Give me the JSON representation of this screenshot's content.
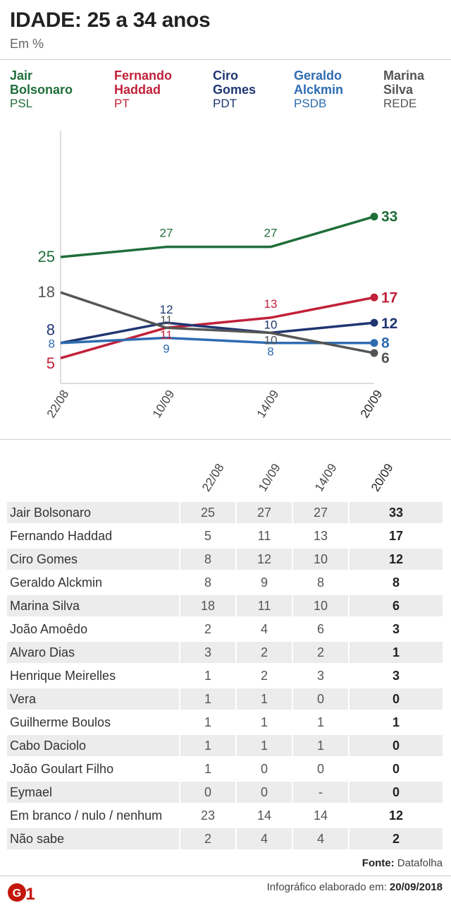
{
  "header": {
    "title": "IDADE: 25 a 34 anos",
    "subtitle": "Em %"
  },
  "legend": [
    {
      "name": "Jair\nBolsonaro",
      "party": "PSL",
      "color": "#1f6e3a"
    },
    {
      "name": "Fernando\nHaddad",
      "party": "PT",
      "color": "#c1213a"
    },
    {
      "name": "Ciro\nGomes",
      "party": "PDT",
      "color": "#1f3671"
    },
    {
      "name": "Geraldo\nAlckmin",
      "party": "PSDB",
      "color": "#2e6cb0"
    },
    {
      "name": "Marina\nSilva",
      "party": "REDE",
      "color": "#555555"
    }
  ],
  "chart_data": {
    "type": "line",
    "categories": [
      "22/08",
      "10/09",
      "14/09",
      "20/09"
    ],
    "ylim": [
      0,
      50
    ],
    "series": [
      {
        "name": "Jair Bolsonaro",
        "values": [
          25,
          27,
          27,
          33
        ],
        "color": "#1f6e3a"
      },
      {
        "name": "Fernando Haddad",
        "values": [
          5,
          11,
          13,
          17
        ],
        "color": "#c1213a"
      },
      {
        "name": "Ciro Gomes",
        "values": [
          8,
          12,
          10,
          12
        ],
        "color": "#1f3671"
      },
      {
        "name": "Geraldo Alckmin",
        "values": [
          8,
          9,
          8,
          8
        ],
        "color": "#2e6cb0"
      },
      {
        "name": "Marina Silva",
        "values": [
          18,
          11,
          10,
          6
        ],
        "color": "#555555"
      }
    ]
  },
  "table": {
    "columns": [
      "22/08",
      "10/09",
      "14/09",
      "20/09"
    ],
    "rows": [
      {
        "name": "Jair Bolsonaro",
        "values": [
          "25",
          "27",
          "27",
          "33"
        ]
      },
      {
        "name": "Fernando Haddad",
        "values": [
          "5",
          "11",
          "13",
          "17"
        ]
      },
      {
        "name": "Ciro Gomes",
        "values": [
          "8",
          "12",
          "10",
          "12"
        ]
      },
      {
        "name": "Geraldo Alckmin",
        "values": [
          "8",
          "9",
          "8",
          "8"
        ]
      },
      {
        "name": "Marina Silva",
        "values": [
          "18",
          "11",
          "10",
          "6"
        ]
      },
      {
        "name": "João Amoêdo",
        "values": [
          "2",
          "4",
          "6",
          "3"
        ]
      },
      {
        "name": "Alvaro Dias",
        "values": [
          "3",
          "2",
          "2",
          "1"
        ]
      },
      {
        "name": "Henrique Meirelles",
        "values": [
          "1",
          "2",
          "3",
          "3"
        ]
      },
      {
        "name": "Vera",
        "values": [
          "1",
          "1",
          "0",
          "0"
        ]
      },
      {
        "name": "Guilherme Boulos",
        "values": [
          "1",
          "1",
          "1",
          "1"
        ]
      },
      {
        "name": "Cabo Daciolo",
        "values": [
          "1",
          "1",
          "1",
          "0"
        ]
      },
      {
        "name": "João Goulart Filho",
        "values": [
          "1",
          "0",
          "0",
          "0"
        ]
      },
      {
        "name": "Eymael",
        "values": [
          "0",
          "0",
          "-",
          "0"
        ]
      },
      {
        "name": "Em branco / nulo / nenhum",
        "values": [
          "23",
          "14",
          "14",
          "12"
        ]
      },
      {
        "name": "Não sabe",
        "values": [
          "2",
          "4",
          "4",
          "2"
        ]
      }
    ]
  },
  "source": {
    "label": "Fonte:",
    "value": "Datafolha"
  },
  "footer": {
    "logo": "G1",
    "label": "Infográfico elaborado em:",
    "date": "20/09/2018"
  }
}
